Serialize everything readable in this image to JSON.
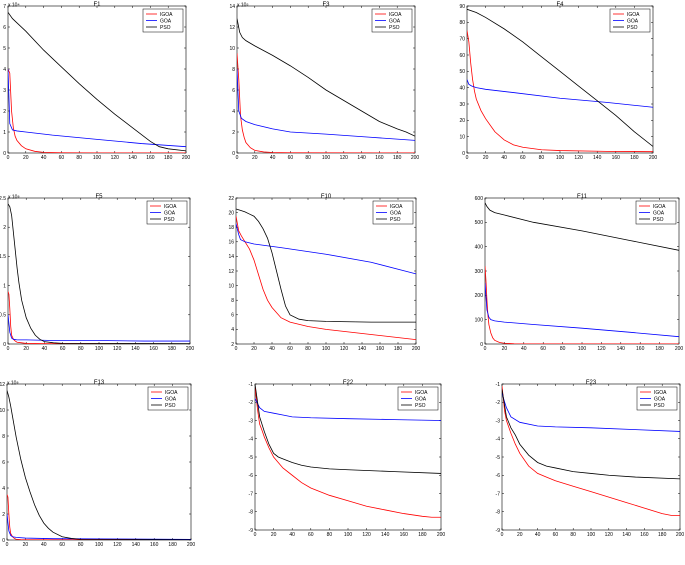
{
  "legend_labels": [
    "IGOA",
    "GOA",
    "PSO"
  ],
  "colors": {
    "IGOA": "#ff0000",
    "GOA": "#0000ff",
    "PSO": "#000000"
  },
  "chart_data": [
    {
      "type": "line",
      "title": "F1",
      "exponent": "x 10⁴",
      "xlim": [
        0,
        200
      ],
      "ylim": [
        0,
        7
      ],
      "xticks": [
        0,
        20,
        40,
        60,
        80,
        100,
        120,
        140,
        160,
        180,
        200
      ],
      "yticks": [
        0,
        1,
        2,
        3,
        4,
        5,
        6,
        7
      ],
      "legend": "top-right",
      "series": [
        {
          "name": "IGOA",
          "x": [
            0,
            2,
            4,
            6,
            8,
            10,
            15,
            20,
            30,
            40,
            60,
            100,
            200
          ],
          "y": [
            4.0,
            3.8,
            2.0,
            1.2,
            0.8,
            0.6,
            0.35,
            0.2,
            0.08,
            0.03,
            0.01,
            0.005,
            0.002
          ]
        },
        {
          "name": "GOA",
          "x": [
            0,
            2,
            5,
            10,
            20,
            50,
            100,
            150,
            200
          ],
          "y": [
            4.0,
            1.4,
            1.1,
            1.05,
            1.0,
            0.85,
            0.65,
            0.45,
            0.3
          ]
        },
        {
          "name": "PSO",
          "x": [
            0,
            5,
            10,
            20,
            40,
            60,
            80,
            100,
            120,
            140,
            160,
            170,
            180,
            200
          ],
          "y": [
            6.7,
            6.4,
            6.2,
            5.8,
            4.9,
            4.1,
            3.3,
            2.55,
            1.85,
            1.2,
            0.55,
            0.3,
            0.2,
            0.1
          ]
        }
      ]
    },
    {
      "type": "line",
      "title": "F3",
      "exponent": "x 10⁵",
      "xlim": [
        0,
        200
      ],
      "ylim": [
        0,
        14
      ],
      "xticks": [
        0,
        20,
        40,
        60,
        80,
        100,
        120,
        140,
        160,
        180,
        200
      ],
      "yticks": [
        0,
        2,
        4,
        6,
        8,
        10,
        12,
        14
      ],
      "legend": "top-right",
      "series": [
        {
          "name": "IGOA",
          "x": [
            0,
            2,
            4,
            6,
            8,
            10,
            15,
            20,
            30,
            40,
            60,
            200
          ],
          "y": [
            9.5,
            7.0,
            3.5,
            2.2,
            1.5,
            1.0,
            0.5,
            0.25,
            0.1,
            0.05,
            0.02,
            0.01
          ]
        },
        {
          "name": "GOA",
          "x": [
            0,
            2,
            5,
            10,
            20,
            40,
            60,
            100,
            150,
            200
          ],
          "y": [
            8.0,
            4.0,
            3.3,
            3.0,
            2.7,
            2.3,
            2.0,
            1.8,
            1.5,
            1.2
          ]
        },
        {
          "name": "PSO",
          "x": [
            0,
            3,
            6,
            10,
            20,
            40,
            60,
            80,
            100,
            120,
            140,
            160,
            180,
            190,
            200
          ],
          "y": [
            12.8,
            11.5,
            11.0,
            10.7,
            10.2,
            9.3,
            8.3,
            7.2,
            6.0,
            5.0,
            4.0,
            3.0,
            2.3,
            2.0,
            1.6
          ]
        }
      ]
    },
    {
      "type": "line",
      "title": "F4",
      "exponent": "",
      "xlim": [
        0,
        200
      ],
      "ylim": [
        0,
        90
      ],
      "xticks": [
        0,
        20,
        40,
        60,
        80,
        100,
        120,
        140,
        160,
        180,
        200
      ],
      "yticks": [
        0,
        10,
        20,
        30,
        40,
        50,
        60,
        70,
        80,
        90
      ],
      "legend": "top-right",
      "series": [
        {
          "name": "IGOA",
          "x": [
            0,
            2,
            4,
            6,
            8,
            10,
            15,
            20,
            30,
            40,
            50,
            60,
            80,
            100,
            150,
            200
          ],
          "y": [
            75,
            68,
            55,
            45,
            38,
            33,
            26,
            21,
            13,
            8,
            5,
            3.5,
            2,
            1.5,
            1,
            0.8
          ]
        },
        {
          "name": "GOA",
          "x": [
            0,
            2,
            5,
            10,
            20,
            50,
            100,
            150,
            200
          ],
          "y": [
            45,
            42,
            41,
            40,
            39,
            37,
            33.5,
            31,
            28
          ]
        },
        {
          "name": "PSO",
          "x": [
            0,
            10,
            20,
            40,
            60,
            80,
            100,
            120,
            140,
            160,
            180,
            200
          ],
          "y": [
            88,
            86,
            83,
            76,
            68,
            59,
            50,
            41,
            32,
            23,
            13,
            4
          ]
        }
      ]
    },
    {
      "type": "line",
      "title": "F5",
      "exponent": "x 10⁸",
      "xlim": [
        0,
        200
      ],
      "ylim": [
        0,
        2.5
      ],
      "xticks": [
        0,
        20,
        40,
        60,
        80,
        100,
        120,
        140,
        160,
        180,
        200
      ],
      "yticks": [
        0,
        0.5,
        1,
        1.5,
        2,
        2.5
      ],
      "legend": "top-right",
      "series": [
        {
          "name": "IGOA",
          "x": [
            0,
            1,
            2,
            3,
            4,
            6,
            8,
            10,
            15,
            20,
            40,
            200
          ],
          "y": [
            0.9,
            0.85,
            0.6,
            0.3,
            0.15,
            0.08,
            0.05,
            0.03,
            0.02,
            0.01,
            0.005,
            0.002
          ]
        },
        {
          "name": "GOA",
          "x": [
            0,
            2,
            4,
            6,
            10,
            20,
            50,
            100,
            150,
            200
          ],
          "y": [
            0.5,
            0.2,
            0.1,
            0.08,
            0.07,
            0.07,
            0.06,
            0.06,
            0.05,
            0.05
          ]
        },
        {
          "name": "PSO",
          "x": [
            0,
            2,
            4,
            6,
            8,
            10,
            12,
            15,
            20,
            25,
            30,
            35,
            40,
            50,
            60,
            200
          ],
          "y": [
            2.4,
            2.35,
            2.2,
            1.9,
            1.6,
            1.3,
            1.05,
            0.75,
            0.45,
            0.27,
            0.15,
            0.08,
            0.04,
            0.02,
            0.01,
            0.005
          ]
        }
      ]
    },
    {
      "type": "line",
      "title": "F10",
      "exponent": "",
      "xlim": [
        0,
        200
      ],
      "ylim": [
        2,
        22
      ],
      "xticks": [
        0,
        20,
        40,
        60,
        80,
        100,
        120,
        140,
        160,
        180,
        200
      ],
      "yticks": [
        2,
        4,
        6,
        8,
        10,
        12,
        14,
        16,
        18,
        20,
        22
      ],
      "legend": "top-right",
      "series": [
        {
          "name": "IGOA",
          "x": [
            0,
            3,
            6,
            10,
            15,
            20,
            25,
            30,
            35,
            40,
            50,
            60,
            80,
            100,
            150,
            200
          ],
          "y": [
            19.5,
            17.5,
            16.8,
            16.0,
            15.0,
            13.5,
            11.5,
            9.5,
            8.0,
            7.0,
            5.6,
            5.0,
            4.4,
            4.0,
            3.3,
            2.6
          ]
        },
        {
          "name": "GOA",
          "x": [
            0,
            3,
            5,
            10,
            20,
            50,
            100,
            150,
            200
          ],
          "y": [
            18.5,
            17.0,
            16.3,
            16.0,
            15.7,
            15.2,
            14.3,
            13.2,
            11.6
          ]
        },
        {
          "name": "PSO",
          "x": [
            0,
            5,
            10,
            15,
            20,
            25,
            30,
            35,
            40,
            45,
            50,
            55,
            60,
            70,
            80,
            100,
            150,
            200
          ],
          "y": [
            20.5,
            20.3,
            20.1,
            19.8,
            19.5,
            18.8,
            17.8,
            16.5,
            14.5,
            12.0,
            9.5,
            7.2,
            6.0,
            5.4,
            5.2,
            5.1,
            5.0,
            5.0
          ]
        }
      ]
    },
    {
      "type": "line",
      "title": "F11",
      "exponent": "",
      "xlim": [
        0,
        200
      ],
      "ylim": [
        0,
        600
      ],
      "xticks": [
        0,
        20,
        40,
        60,
        80,
        100,
        120,
        140,
        160,
        180,
        200
      ],
      "yticks": [
        0,
        100,
        200,
        300,
        400,
        500,
        600
      ],
      "legend": "top-right",
      "series": [
        {
          "name": "IGOA",
          "x": [
            0,
            1,
            2,
            3,
            4,
            6,
            8,
            10,
            15,
            20,
            30,
            40,
            200
          ],
          "y": [
            320,
            260,
            180,
            120,
            80,
            45,
            25,
            15,
            6,
            3,
            1,
            0.5,
            0.3
          ]
        },
        {
          "name": "GOA",
          "x": [
            0,
            2,
            4,
            6,
            10,
            20,
            50,
            100,
            150,
            200
          ],
          "y": [
            250,
            140,
            110,
            100,
            95,
            90,
            80,
            65,
            48,
            30
          ]
        },
        {
          "name": "PSO",
          "x": [
            0,
            2,
            5,
            10,
            20,
            50,
            100,
            150,
            200
          ],
          "y": [
            580,
            565,
            550,
            540,
            530,
            500,
            465,
            425,
            385
          ]
        }
      ]
    },
    {
      "type": "line",
      "title": "F13",
      "exponent": "x 10⁸",
      "xlim": [
        0,
        200
      ],
      "ylim": [
        0,
        12
      ],
      "xticks": [
        0,
        20,
        40,
        60,
        80,
        100,
        120,
        140,
        160,
        180,
        200
      ],
      "yticks": [
        0,
        2,
        4,
        6,
        8,
        10,
        12
      ],
      "legend": "top-right",
      "series": [
        {
          "name": "IGOA",
          "x": [
            0,
            1,
            2,
            3,
            4,
            6,
            8,
            10,
            15,
            20,
            200
          ],
          "y": [
            3.5,
            3.3,
            2.0,
            1.0,
            0.5,
            0.25,
            0.12,
            0.06,
            0.03,
            0.02,
            0.01
          ]
        },
        {
          "name": "GOA",
          "x": [
            0,
            2,
            4,
            6,
            10,
            20,
            50,
            100,
            200
          ],
          "y": [
            2.0,
            0.7,
            0.35,
            0.25,
            0.2,
            0.15,
            0.1,
            0.08,
            0.05
          ]
        },
        {
          "name": "PSO",
          "x": [
            0,
            2,
            4,
            6,
            8,
            10,
            15,
            20,
            25,
            30,
            35,
            40,
            45,
            50,
            60,
            70,
            80,
            200
          ],
          "y": [
            11.5,
            11.0,
            10.3,
            9.5,
            8.7,
            7.9,
            6.2,
            4.8,
            3.7,
            2.7,
            1.9,
            1.3,
            0.9,
            0.6,
            0.25,
            0.12,
            0.05,
            0.02
          ]
        }
      ]
    },
    {
      "type": "line",
      "title": "F22",
      "exponent": "",
      "xlim": [
        0,
        200
      ],
      "ylim": [
        -9,
        -1
      ],
      "xticks": [
        0,
        20,
        40,
        60,
        80,
        100,
        120,
        140,
        160,
        180,
        200
      ],
      "yticks": [
        -9,
        -8,
        -7,
        -6,
        -5,
        -4,
        -3,
        -2,
        -1
      ],
      "legend": "top-right",
      "series": [
        {
          "name": "IGOA",
          "x": [
            0,
            3,
            5,
            8,
            10,
            15,
            20,
            30,
            40,
            50,
            60,
            80,
            100,
            120,
            140,
            160,
            180,
            190,
            200
          ],
          "y": [
            -1.2,
            -2.5,
            -3.2,
            -3.6,
            -3.9,
            -4.5,
            -5.0,
            -5.6,
            -6.0,
            -6.4,
            -6.7,
            -7.1,
            -7.4,
            -7.7,
            -7.9,
            -8.1,
            -8.25,
            -8.3,
            -8.3
          ]
        },
        {
          "name": "GOA",
          "x": [
            0,
            3,
            5,
            10,
            20,
            30,
            40,
            60,
            100,
            150,
            200
          ],
          "y": [
            -1.8,
            -2.1,
            -2.3,
            -2.5,
            -2.6,
            -2.7,
            -2.8,
            -2.85,
            -2.9,
            -2.95,
            -3.0
          ]
        },
        {
          "name": "PSO",
          "x": [
            0,
            5,
            10,
            15,
            20,
            25,
            30,
            40,
            50,
            60,
            80,
            100,
            150,
            200
          ],
          "y": [
            -1.0,
            -2.8,
            -3.6,
            -4.3,
            -4.8,
            -5.0,
            -5.1,
            -5.3,
            -5.45,
            -5.55,
            -5.65,
            -5.7,
            -5.8,
            -5.9
          ]
        }
      ]
    },
    {
      "type": "line",
      "title": "F23",
      "exponent": "",
      "xlim": [
        0,
        200
      ],
      "ylim": [
        -9,
        -1
      ],
      "xticks": [
        0,
        20,
        40,
        60,
        80,
        100,
        120,
        140,
        160,
        180,
        200
      ],
      "yticks": [
        -9,
        -8,
        -7,
        -6,
        -5,
        -4,
        -3,
        -2,
        -1
      ],
      "legend": "top-right",
      "series": [
        {
          "name": "IGOA",
          "x": [
            0,
            3,
            5,
            10,
            15,
            20,
            30,
            40,
            50,
            60,
            80,
            100,
            120,
            140,
            160,
            180,
            190,
            200
          ],
          "y": [
            -1.1,
            -2.5,
            -3.0,
            -3.7,
            -4.3,
            -4.8,
            -5.5,
            -5.9,
            -6.1,
            -6.3,
            -6.6,
            -6.9,
            -7.2,
            -7.5,
            -7.8,
            -8.1,
            -8.2,
            -8.2
          ]
        },
        {
          "name": "GOA",
          "x": [
            0,
            3,
            5,
            10,
            20,
            40,
            60,
            100,
            150,
            200
          ],
          "y": [
            -1.5,
            -2.0,
            -2.3,
            -2.8,
            -3.1,
            -3.3,
            -3.35,
            -3.4,
            -3.5,
            -3.6
          ]
        },
        {
          "name": "PSO",
          "x": [
            0,
            3,
            5,
            10,
            15,
            20,
            30,
            40,
            50,
            60,
            80,
            100,
            120,
            150,
            200
          ],
          "y": [
            -1.3,
            -2.2,
            -2.8,
            -3.4,
            -3.8,
            -4.3,
            -4.9,
            -5.3,
            -5.5,
            -5.6,
            -5.8,
            -5.9,
            -6.0,
            -6.1,
            -6.2
          ]
        }
      ]
    }
  ]
}
